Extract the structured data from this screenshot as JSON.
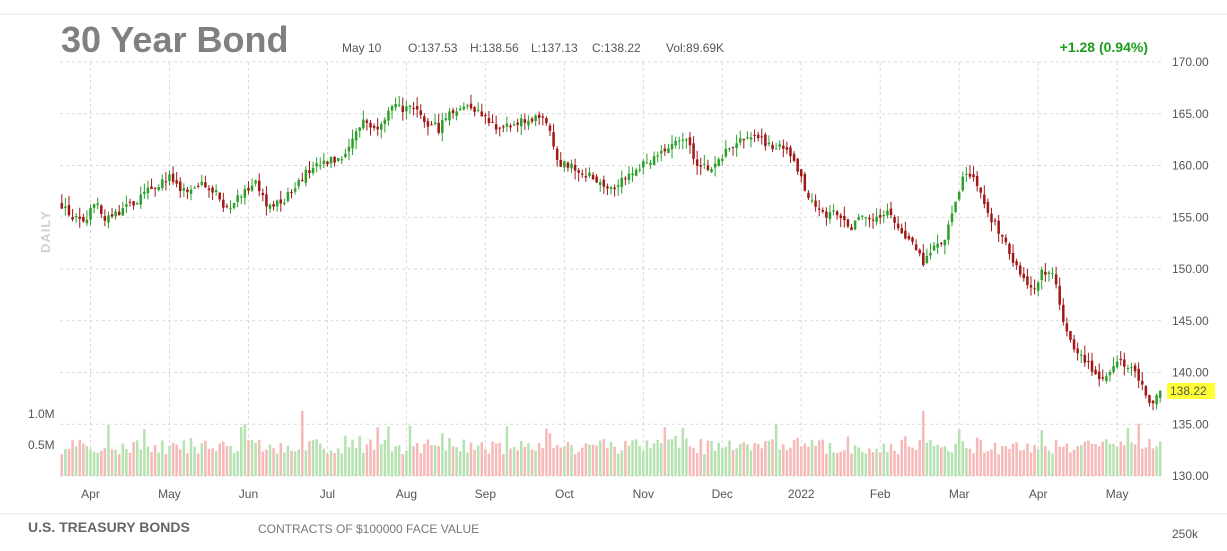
{
  "header": {
    "title": "30 Year Bond",
    "date": "May 10",
    "open": "O:137.53",
    "high": "H:138.56",
    "low": "L:137.13",
    "close": "C:138.22",
    "volume": "Vol:89.69K",
    "change": "+1.28 (0.94%)"
  },
  "side_label": "DAILY",
  "last_price_label": "138.22",
  "footer": {
    "title": "U.S. TREASURY BONDS",
    "subtitle": "CONTRACTS OF $100000 FACE VALUE",
    "vol_tick": "250k"
  },
  "colors": {
    "up": "#2ca02c",
    "down": "#a01818",
    "vol_up": "#b5e3b0",
    "vol_down": "#f7b8b8",
    "last_price_bg": "#ffff33",
    "change": "#1a9e1a"
  },
  "chart_data": {
    "type": "candlestick",
    "instrument": "30 Year Bond",
    "y_axis": {
      "ylim": [
        130,
        170
      ],
      "ticks": [
        "170.00",
        "165.00",
        "160.00",
        "155.00",
        "150.00",
        "145.00",
        "140.00",
        "135.00",
        "130.00"
      ],
      "position": "right"
    },
    "volume_axis": {
      "ticks": [
        "1.0M",
        "0.5M"
      ],
      "tick_values": [
        1000000,
        500000
      ],
      "ylim": [
        0,
        1300000
      ]
    },
    "x_axis": {
      "months": [
        "Apr",
        "May",
        "Jun",
        "Jul",
        "Aug",
        "Sep",
        "Oct",
        "Nov",
        "Dec",
        "2022",
        "Feb",
        "Mar",
        "Apr",
        "May"
      ],
      "month_start_index": [
        8,
        30,
        52,
        74,
        96,
        118,
        140,
        162,
        184,
        206,
        228,
        250,
        272,
        294
      ]
    },
    "close_path": [
      [
        0,
        156.2
      ],
      [
        3,
        155.0
      ],
      [
        6,
        154.2
      ],
      [
        9,
        156.6
      ],
      [
        12,
        154.6
      ],
      [
        15,
        155.3
      ],
      [
        18,
        156.0
      ],
      [
        21,
        156.5
      ],
      [
        24,
        157.5
      ],
      [
        27,
        158.3
      ],
      [
        30,
        158.8
      ],
      [
        33,
        157.5
      ],
      [
        36,
        157.3
      ],
      [
        39,
        158.4
      ],
      [
        42,
        157.8
      ],
      [
        45,
        156.0
      ],
      [
        48,
        156.4
      ],
      [
        51,
        157.8
      ],
      [
        54,
        158.4
      ],
      [
        57,
        156.0
      ],
      [
        60,
        156.2
      ],
      [
        63,
        157.0
      ],
      [
        66,
        158.8
      ],
      [
        69,
        159.4
      ],
      [
        72,
        160.0
      ],
      [
        75,
        160.4
      ],
      [
        78,
        161.0
      ],
      [
        81,
        162.5
      ],
      [
        84,
        164.5
      ],
      [
        87,
        163.5
      ],
      [
        90,
        164.8
      ],
      [
        93,
        165.6
      ],
      [
        96,
        165.5
      ],
      [
        99,
        165.0
      ],
      [
        102,
        164.0
      ],
      [
        105,
        163.6
      ],
      [
        108,
        165.2
      ],
      [
        111,
        165.6
      ],
      [
        114,
        165.8
      ],
      [
        117,
        164.9
      ],
      [
        120,
        164.0
      ],
      [
        123,
        163.6
      ],
      [
        126,
        163.8
      ],
      [
        129,
        164.4
      ],
      [
        132,
        164.4
      ],
      [
        135,
        164.2
      ],
      [
        138,
        160.6
      ],
      [
        141,
        159.8
      ],
      [
        144,
        159.6
      ],
      [
        147,
        159.0
      ],
      [
        150,
        158.5
      ],
      [
        153,
        157.8
      ],
      [
        156,
        158.8
      ],
      [
        159,
        159.3
      ],
      [
        162,
        160.2
      ],
      [
        165,
        160.8
      ],
      [
        168,
        161.2
      ],
      [
        171,
        162.8
      ],
      [
        174,
        162.2
      ],
      [
        177,
        160.4
      ],
      [
        180,
        159.6
      ],
      [
        183,
        160.4
      ],
      [
        186,
        161.8
      ],
      [
        189,
        162.5
      ],
      [
        192,
        162.8
      ],
      [
        195,
        162.5
      ],
      [
        198,
        161.8
      ],
      [
        201,
        161.6
      ],
      [
        204,
        160.4
      ],
      [
        207,
        157.8
      ],
      [
        210,
        156.2
      ],
      [
        213,
        155.0
      ],
      [
        216,
        155.6
      ],
      [
        219,
        153.8
      ],
      [
        222,
        154.8
      ],
      [
        225,
        154.6
      ],
      [
        228,
        155.2
      ],
      [
        231,
        155.4
      ],
      [
        234,
        153.2
      ],
      [
        237,
        152.2
      ],
      [
        240,
        150.8
      ],
      [
        243,
        152.0
      ],
      [
        246,
        152.8
      ],
      [
        249,
        156.4
      ],
      [
        252,
        159.6
      ],
      [
        255,
        158.2
      ],
      [
        258,
        155.4
      ],
      [
        261,
        153.6
      ],
      [
        264,
        151.8
      ],
      [
        267,
        149.2
      ],
      [
        270,
        147.8
      ],
      [
        273,
        149.8
      ],
      [
        276,
        150.0
      ],
      [
        279,
        145.0
      ],
      [
        282,
        142.2
      ],
      [
        285,
        141.4
      ],
      [
        288,
        139.8
      ],
      [
        291,
        139.6
      ],
      [
        294,
        141.4
      ],
      [
        297,
        140.8
      ],
      [
        300,
        139.4
      ],
      [
        303,
        136.8
      ],
      [
        306,
        138.22
      ]
    ],
    "last_price": 138.22
  }
}
